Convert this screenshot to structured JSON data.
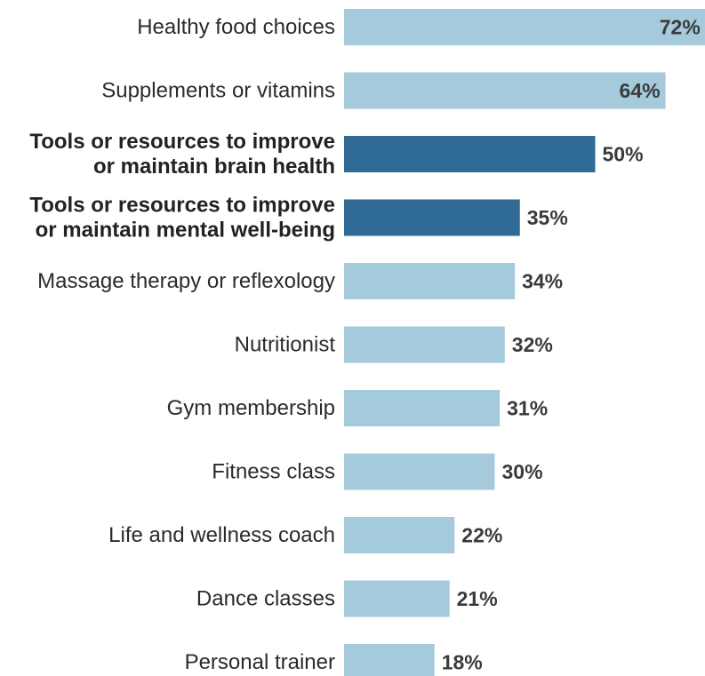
{
  "chart_data": {
    "type": "bar",
    "orientation": "horizontal",
    "title": "",
    "xlabel": "",
    "ylabel": "",
    "xlim": [
      0,
      72
    ],
    "grid": false,
    "legend": "none",
    "colors": {
      "default": "#a5cadb",
      "highlight": "#2e6a93"
    },
    "unit_suffix": "%",
    "bars": [
      {
        "category_lines": [
          "Healthy food choices"
        ],
        "value": 72,
        "highlight": false
      },
      {
        "category_lines": [
          "Supplements or vitamins"
        ],
        "value": 64,
        "highlight": false
      },
      {
        "category_lines": [
          "Tools or resources to improve",
          "or maintain brain health"
        ],
        "value": 50,
        "highlight": true
      },
      {
        "category_lines": [
          "Tools or resources to improve",
          "or maintain mental well-being"
        ],
        "value": 35,
        "highlight": true
      },
      {
        "category_lines": [
          "Massage therapy or reflexology"
        ],
        "value": 34,
        "highlight": false
      },
      {
        "category_lines": [
          "Nutritionist"
        ],
        "value": 32,
        "highlight": false
      },
      {
        "category_lines": [
          "Gym membership"
        ],
        "value": 31,
        "highlight": false
      },
      {
        "category_lines": [
          "Fitness class"
        ],
        "value": 30,
        "highlight": false
      },
      {
        "category_lines": [
          "Life and wellness coach"
        ],
        "value": 22,
        "highlight": false
      },
      {
        "category_lines": [
          "Dance classes"
        ],
        "value": 21,
        "highlight": false
      },
      {
        "category_lines": [
          "Personal trainer"
        ],
        "value": 18,
        "highlight": false
      }
    ]
  }
}
